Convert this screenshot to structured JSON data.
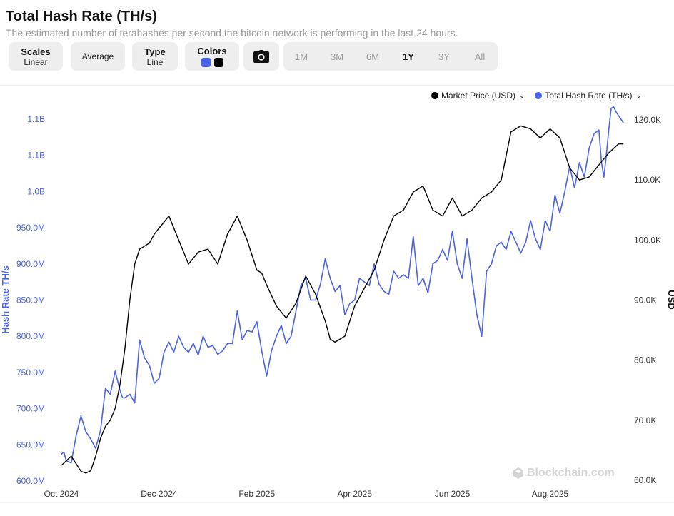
{
  "header": {
    "title": "Total Hash Rate (TH/s)",
    "subtitle": "The estimated number of terahashes per second the bitcoin network is performing in the last 24 hours."
  },
  "toolbar": {
    "scales_label": "Scales",
    "scales_value": "Linear",
    "average_label": "Average",
    "type_label": "Type",
    "type_value": "Line",
    "colors_label": "Colors",
    "camera_icon": "camera-icon",
    "ranges": [
      "1M",
      "3M",
      "6M",
      "1Y",
      "3Y",
      "All"
    ],
    "active_range": "1Y"
  },
  "colors": {
    "hash_rate": "#4a63e6",
    "market_price": "#000000",
    "watermark": "#d4d4d4"
  },
  "legend": {
    "market_price": "Market Price (USD)",
    "hash_rate": "Total Hash Rate (TH/s)"
  },
  "watermark": "Blockchain.com",
  "chart_data": {
    "type": "line",
    "left_axis": {
      "title": "Hash Rate TH/s",
      "ticks": [
        "600.0M",
        "650.0M",
        "700.0M",
        "750.0M",
        "800.0M",
        "850.0M",
        "900.0M",
        "950.0M",
        "1.0B",
        "1.1B",
        "1.1B"
      ],
      "tick_values": [
        600,
        650,
        700,
        750,
        800,
        850,
        900,
        950,
        1000,
        1050,
        1100
      ],
      "ylim": [
        600,
        1100
      ],
      "unit_note": "millions TH/s"
    },
    "right_axis": {
      "title": "USD",
      "ticks": [
        "60.0K",
        "70.0K",
        "80.0K",
        "90.0K",
        "100.0K",
        "110.0K",
        "120.0K"
      ],
      "tick_values": [
        60,
        70,
        80,
        90,
        100,
        110,
        120
      ],
      "ylim": [
        60,
        120
      ],
      "unit_note": "thousands USD"
    },
    "x_axis": {
      "ticks": [
        "Oct 2024",
        "Dec 2024",
        "Feb 2025",
        "Apr 2025",
        "Jun 2025",
        "Aug 2025"
      ],
      "tick_t": [
        0,
        2,
        4,
        6,
        8,
        10
      ],
      "xlim": [
        0,
        11.6
      ]
    },
    "series": [
      {
        "name": "Total Hash Rate (TH/s)",
        "axis": "left",
        "color": "#4a63e6",
        "x": [
          0.0,
          0.05,
          0.1,
          0.2,
          0.3,
          0.4,
          0.5,
          0.6,
          0.7,
          0.8,
          0.9,
          1.0,
          1.1,
          1.2,
          1.25,
          1.3,
          1.4,
          1.5,
          1.6,
          1.7,
          1.8,
          1.9,
          2.0,
          2.1,
          2.2,
          2.3,
          2.4,
          2.5,
          2.6,
          2.7,
          2.8,
          2.9,
          3.0,
          3.1,
          3.2,
          3.3,
          3.4,
          3.5,
          3.6,
          3.7,
          3.8,
          3.9,
          4.0,
          4.1,
          4.2,
          4.3,
          4.4,
          4.5,
          4.6,
          4.7,
          4.8,
          4.9,
          5.0,
          5.1,
          5.2,
          5.3,
          5.4,
          5.5,
          5.6,
          5.7,
          5.8,
          5.9,
          6.0,
          6.1,
          6.2,
          6.3,
          6.4,
          6.5,
          6.6,
          6.7,
          6.8,
          6.9,
          7.0,
          7.1,
          7.2,
          7.3,
          7.4,
          7.5,
          7.6,
          7.7,
          7.8,
          7.9,
          8.0,
          8.1,
          8.2,
          8.3,
          8.4,
          8.5,
          8.6,
          8.7,
          8.8,
          8.9,
          9.0,
          9.1,
          9.2,
          9.3,
          9.4,
          9.5,
          9.6,
          9.7,
          9.8,
          9.9,
          10.0,
          10.1,
          10.2,
          10.3,
          10.4,
          10.5,
          10.6,
          10.7,
          10.8,
          10.9,
          11.0,
          11.05,
          11.1,
          11.15,
          11.2,
          11.25,
          11.3,
          11.35,
          11.4,
          11.45,
          11.5
        ],
        "y": [
          637,
          640,
          628,
          625,
          662,
          690,
          668,
          658,
          645,
          670,
          728,
          720,
          752,
          725,
          715,
          715,
          720,
          708,
          795,
          770,
          760,
          735,
          742,
          778,
          792,
          778,
          800,
          785,
          778,
          790,
          774,
          800,
          785,
          787,
          775,
          780,
          790,
          790,
          835,
          795,
          808,
          806,
          820,
          780,
          745,
          780,
          800,
          815,
          790,
          800,
          835,
          870,
          880,
          850,
          850,
          872,
          907,
          880,
          862,
          870,
          830,
          845,
          850,
          880,
          875,
          870,
          900,
          872,
          862,
          858,
          890,
          880,
          885,
          880,
          938,
          870,
          880,
          860,
          900,
          905,
          920,
          905,
          945,
          900,
          880,
          935,
          880,
          830,
          800,
          890,
          900,
          925,
          930,
          920,
          945,
          930,
          915,
          930,
          960,
          935,
          920,
          960,
          945,
          995,
          970,
          1000,
          1035,
          1005,
          1040,
          1020,
          1060,
          1080,
          1085,
          1040,
          1020,
          1050,
          1085,
          1115,
          1117,
          1110,
          1105,
          1100,
          1095
        ]
      },
      {
        "name": "Market Price (USD)",
        "axis": "right",
        "color": "#000000",
        "x": [
          0.0,
          0.2,
          0.4,
          0.5,
          0.6,
          0.7,
          0.8,
          0.9,
          1.0,
          1.1,
          1.2,
          1.3,
          1.4,
          1.5,
          1.6,
          1.7,
          1.8,
          1.9,
          2.0,
          2.2,
          2.4,
          2.6,
          2.8,
          3.0,
          3.2,
          3.4,
          3.6,
          3.8,
          4.0,
          4.1,
          4.2,
          4.4,
          4.6,
          4.8,
          5.0,
          5.2,
          5.4,
          5.5,
          5.6,
          5.8,
          6.0,
          6.2,
          6.4,
          6.6,
          6.8,
          7.0,
          7.2,
          7.4,
          7.6,
          7.8,
          8.0,
          8.2,
          8.4,
          8.6,
          8.8,
          9.0,
          9.2,
          9.4,
          9.6,
          9.8,
          10.0,
          10.2,
          10.4,
          10.6,
          10.8,
          11.0,
          11.2,
          11.4,
          11.5
        ],
        "y": [
          62.5,
          64.0,
          61.5,
          61.2,
          61.6,
          64.0,
          67.0,
          69.0,
          70.0,
          72.0,
          76.0,
          82.0,
          90.0,
          96.0,
          98.5,
          99.0,
          99.5,
          101.0,
          102.0,
          104.0,
          100.0,
          96.0,
          98.0,
          98.5,
          96.0,
          101.0,
          104.0,
          100.0,
          95.0,
          94.5,
          92.5,
          89.0,
          87.0,
          89.5,
          94.0,
          91.0,
          86.5,
          83.5,
          83.0,
          84.0,
          89.0,
          92.0,
          95.0,
          100.0,
          104.0,
          105.0,
          108.0,
          109.0,
          105.0,
          104.0,
          107.0,
          104.0,
          105.0,
          107.0,
          108.0,
          110.0,
          118.0,
          119.0,
          118.5,
          117.0,
          118.5,
          117.0,
          112.0,
          110.0,
          110.5,
          112.5,
          114.5,
          116.0,
          116.0
        ]
      }
    ],
    "grid": false,
    "legend_position": "top-right"
  }
}
